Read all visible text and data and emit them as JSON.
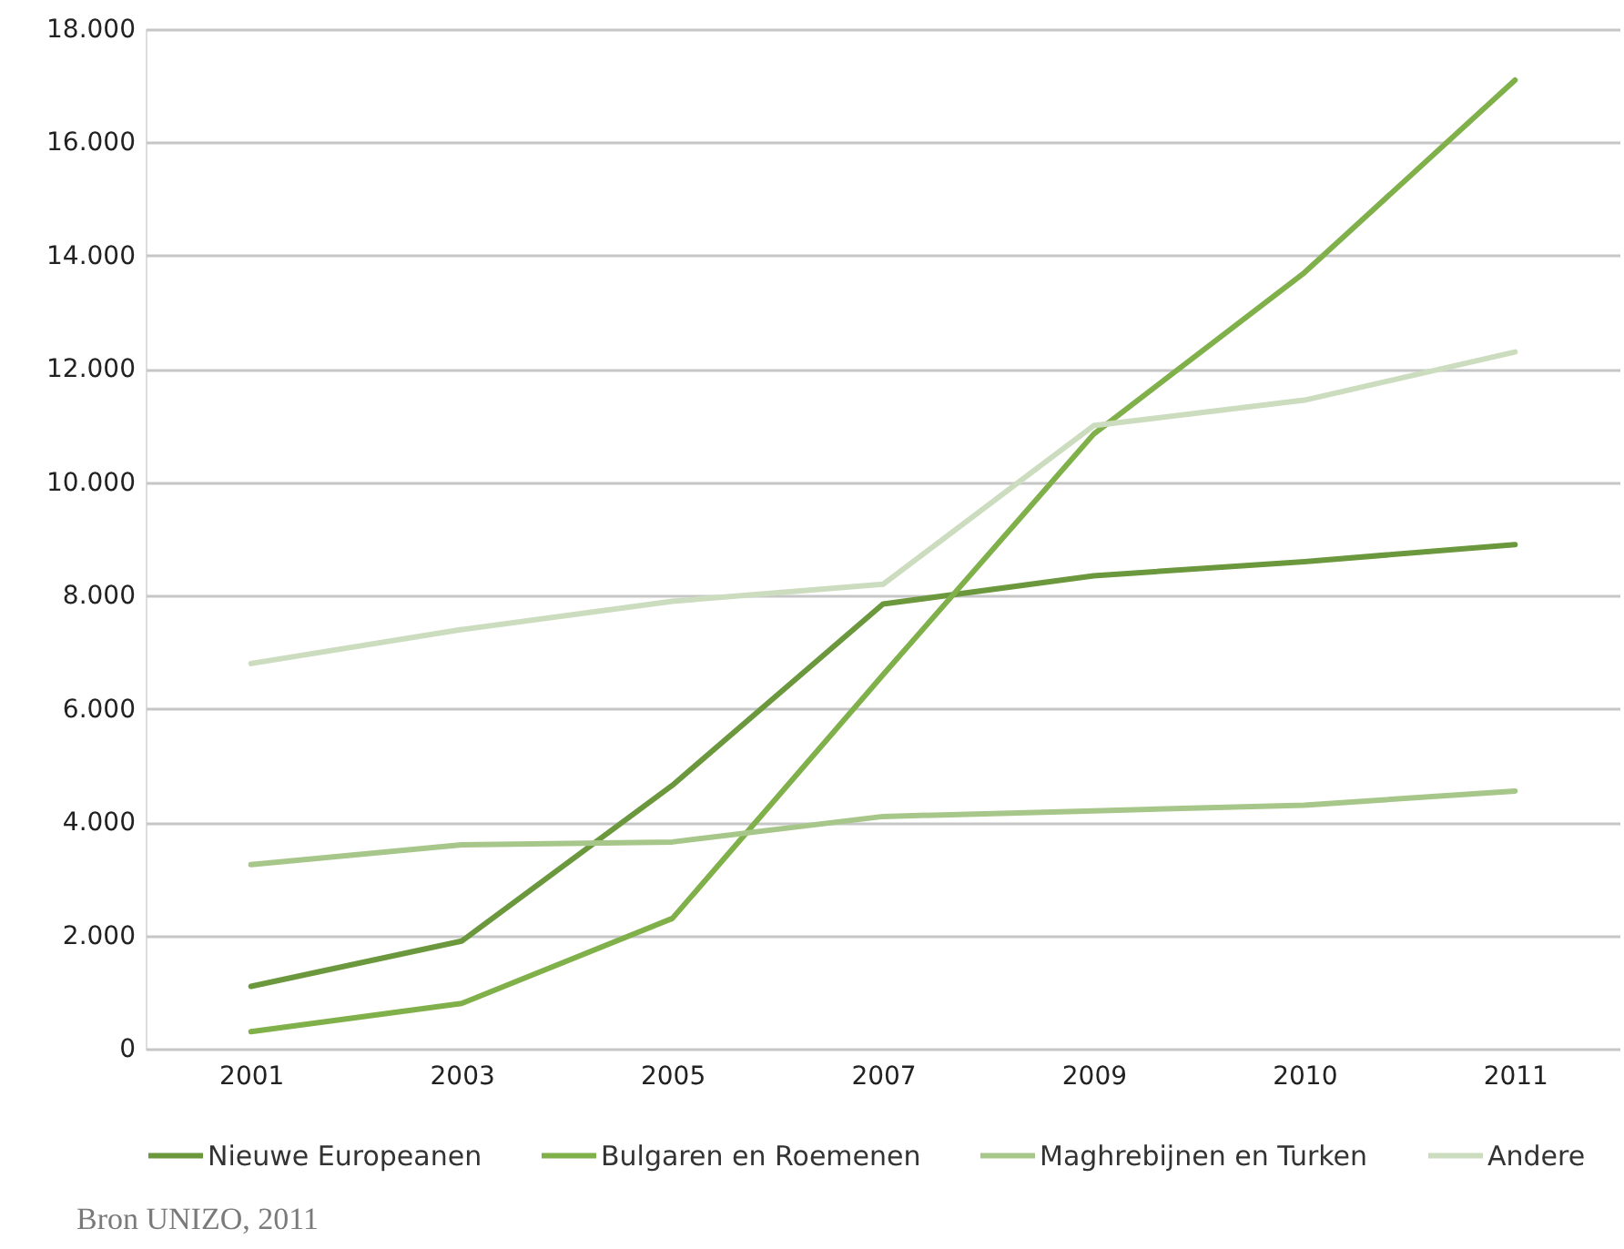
{
  "chart_data": {
    "type": "line",
    "categories": [
      "2001",
      "2003",
      "2005",
      "2007",
      "2009",
      "2010",
      "2011"
    ],
    "series": [
      {
        "name": "Nieuwe Europeanen",
        "color": "#6b973d",
        "values": [
          1100,
          1900,
          4650,
          7850,
          8350,
          8600,
          8900
        ]
      },
      {
        "name": "Bulgaren en Roemenen",
        "color": "#80b04a",
        "values": [
          300,
          800,
          2300,
          6600,
          10850,
          13700,
          17100
        ]
      },
      {
        "name": "Maghrebijnen en Turken",
        "color": "#a7c78a",
        "values": [
          3250,
          3600,
          3650,
          4100,
          4200,
          4300,
          4550
        ]
      },
      {
        "name": "Andere",
        "color": "#ccdcbe",
        "values": [
          6800,
          7400,
          7900,
          8200,
          11000,
          11450,
          12300
        ]
      }
    ],
    "ylim": [
      0,
      18000
    ],
    "yticks": [
      0,
      {
        "value": 2000,
        "label": "2.000"
      },
      {
        "value": 4000,
        "label": "4.000"
      },
      {
        "value": 6000,
        "label": "6.000"
      },
      {
        "value": 8000,
        "label": "8.000"
      },
      {
        "value": 10000,
        "label": "10.000"
      },
      {
        "value": 12000,
        "label": "12.000"
      },
      {
        "value": 14000,
        "label": "14.000"
      },
      {
        "value": 16000,
        "label": "16.000"
      },
      {
        "value": 18000,
        "label": "18.000"
      }
    ],
    "grid": "y",
    "legend": "bottom",
    "annotations": [
      "Bron UNIZO, 2011"
    ]
  }
}
